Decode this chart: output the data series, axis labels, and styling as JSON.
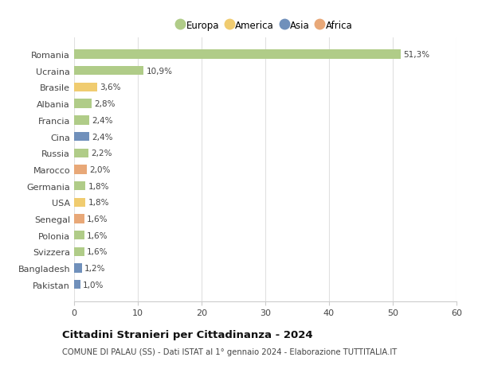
{
  "categories": [
    "Pakistan",
    "Bangladesh",
    "Svizzera",
    "Polonia",
    "Senegal",
    "USA",
    "Germania",
    "Marocco",
    "Russia",
    "Cina",
    "Francia",
    "Albania",
    "Brasile",
    "Ucraina",
    "Romania"
  ],
  "values": [
    1.0,
    1.2,
    1.6,
    1.6,
    1.6,
    1.8,
    1.8,
    2.0,
    2.2,
    2.4,
    2.4,
    2.8,
    3.6,
    10.9,
    51.3
  ],
  "labels": [
    "1,0%",
    "1,2%",
    "1,6%",
    "1,6%",
    "1,6%",
    "1,8%",
    "1,8%",
    "2,0%",
    "2,2%",
    "2,4%",
    "2,4%",
    "2,8%",
    "3,6%",
    "10,9%",
    "51,3%"
  ],
  "colors": [
    "#7090bb",
    "#7090bb",
    "#b0cc88",
    "#b0cc88",
    "#e8a878",
    "#f0cc70",
    "#b0cc88",
    "#e8a878",
    "#b0cc88",
    "#7090bb",
    "#b0cc88",
    "#b0cc88",
    "#f0cc70",
    "#b0cc88",
    "#b0cc88"
  ],
  "legend_labels": [
    "Europa",
    "America",
    "Asia",
    "Africa"
  ],
  "legend_colors": [
    "#b0cc88",
    "#f0cc70",
    "#7090bb",
    "#e8a878"
  ],
  "title": "Cittadini Stranieri per Cittadinanza - 2024",
  "subtitle": "COMUNE DI PALAU (SS) - Dati ISTAT al 1° gennaio 2024 - Elaborazione TUTTITALIA.IT",
  "xlim": [
    0,
    60
  ],
  "xticks": [
    0,
    10,
    20,
    30,
    40,
    50,
    60
  ],
  "background_color": "#ffffff",
  "grid_color": "#e0e0e0",
  "bar_height": 0.55
}
